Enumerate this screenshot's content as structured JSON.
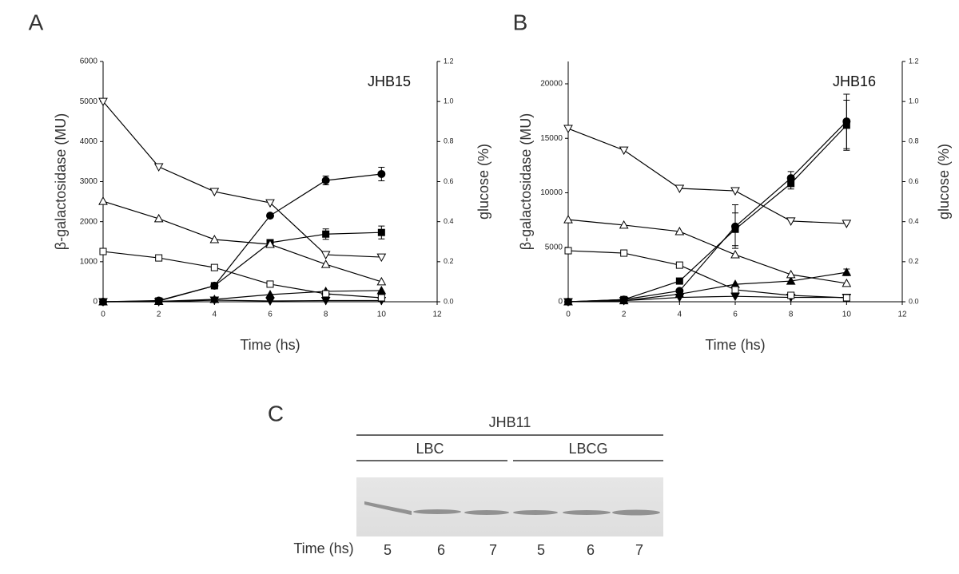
{
  "chart_data": [
    {
      "type": "line",
      "panel_label": "A",
      "annotation": "JHB15",
      "x_label": "Time (hs)",
      "y_label": "β-galactosidase (MU)",
      "y2_label": "glucose (%)",
      "x": [
        0,
        2,
        4,
        6,
        8,
        10
      ],
      "xlim": [
        0,
        12
      ],
      "xticks": [
        0,
        2,
        4,
        6,
        8,
        10,
        12
      ],
      "ylim": [
        0,
        6000
      ],
      "yticks": [
        0,
        1000,
        2000,
        3000,
        4000,
        5000,
        6000
      ],
      "y2lim": [
        0,
        1.2
      ],
      "y2ticks": [
        {
          "value": 0,
          "label": "0.0"
        },
        0.2,
        0.4,
        0.6,
        0.8,
        {
          "value": 1,
          "label": "1.0"
        },
        1.2
      ],
      "series": [
        {
          "marker": "circle",
          "filled": true,
          "color": "#000000",
          "values": [
            0,
            30,
            400,
            2150,
            3030,
            3190
          ],
          "errors": [
            null,
            null,
            null,
            null,
            110,
            170
          ]
        },
        {
          "marker": "square",
          "filled": true,
          "color": "#000000",
          "values": [
            0,
            20,
            400,
            1475,
            1690,
            1730
          ],
          "errors": [
            null,
            null,
            null,
            60,
            130,
            160
          ]
        },
        {
          "marker": "triangle-up",
          "filled": true,
          "color": "#000000",
          "values": [
            0,
            10,
            60,
            180,
            260,
            280
          ]
        },
        {
          "marker": "triangle-down",
          "filled": true,
          "color": "#000000",
          "values": [
            0,
            0,
            40,
            20,
            30,
            30
          ]
        },
        {
          "marker": "triangle-down",
          "filled": false,
          "color": "#000000",
          "axis": "y2",
          "values": [
            1.0,
            0.674,
            0.55,
            0.494,
            0.235,
            0.223
          ]
        },
        {
          "marker": "triangle-up",
          "filled": false,
          "color": "#000000",
          "axis": "y2",
          "values": [
            0.502,
            0.415,
            0.311,
            0.287,
            0.187,
            0.1
          ]
        },
        {
          "marker": "square",
          "filled": false,
          "color": "#000000",
          "axis": "y2",
          "values": [
            0.251,
            0.219,
            0.171,
            0.088,
            0.04,
            0.02
          ]
        }
      ]
    },
    {
      "type": "line",
      "panel_label": "B",
      "annotation": "JHB16",
      "x_label": "Time (hs)",
      "y_label": "β-galactosidase (MU)",
      "y2_label": "glucose (%)",
      "x": [
        0,
        2,
        4,
        6,
        8,
        10
      ],
      "xlim": [
        0,
        12
      ],
      "xticks": [
        0,
        2,
        4,
        6,
        8,
        10,
        12
      ],
      "ylim": [
        0,
        22050
      ],
      "yticks": [
        0,
        5000,
        10000,
        15000,
        20000
      ],
      "y2lim": [
        0,
        1.2
      ],
      "y2ticks": [
        {
          "value": 0,
          "label": "0.0"
        },
        0.2,
        0.4,
        0.6,
        0.8,
        {
          "value": 1,
          "label": "1.0"
        },
        1.2
      ],
      "series": [
        {
          "marker": "circle",
          "filled": true,
          "color": "#000000",
          "values": [
            0,
            200,
            1000,
            6900,
            11350,
            16550
          ],
          "errors": [
            null,
            null,
            null,
            2000,
            600,
            2500
          ]
        },
        {
          "marker": "square",
          "filled": true,
          "color": "#000000",
          "values": [
            0,
            200,
            1900,
            6650,
            10850,
            16200
          ],
          "errors": [
            null,
            null,
            null,
            1500,
            500,
            2300
          ]
        },
        {
          "marker": "triangle-up",
          "filled": true,
          "color": "#000000",
          "values": [
            0,
            100,
            700,
            1600,
            1900,
            2700
          ],
          "errors": [
            null,
            null,
            null,
            null,
            null,
            300
          ]
        },
        {
          "marker": "triangle-down",
          "filled": true,
          "color": "#000000",
          "values": [
            0,
            100,
            400,
            500,
            400,
            400
          ]
        },
        {
          "marker": "triangle-down",
          "filled": false,
          "color": "#000000",
          "axis": "y2",
          "values": [
            0.865,
            0.757,
            0.566,
            0.554,
            0.403,
            0.391
          ]
        },
        {
          "marker": "triangle-up",
          "filled": false,
          "color": "#000000",
          "axis": "y2",
          "values": [
            0.41,
            0.383,
            0.351,
            0.235,
            0.136,
            0.092
          ]
        },
        {
          "marker": "square",
          "filled": false,
          "color": "#000000",
          "axis": "y2",
          "values": [
            0.255,
            0.243,
            0.183,
            0.06,
            0.032,
            0.02
          ]
        }
      ]
    }
  ],
  "gel": {
    "panel_label": "C",
    "title": "JHB11",
    "groups": [
      "LBC",
      "LBCG"
    ],
    "time_label": "Time (hs)",
    "lanes": [
      "5",
      "6",
      "7",
      "5",
      "6",
      "7"
    ]
  }
}
